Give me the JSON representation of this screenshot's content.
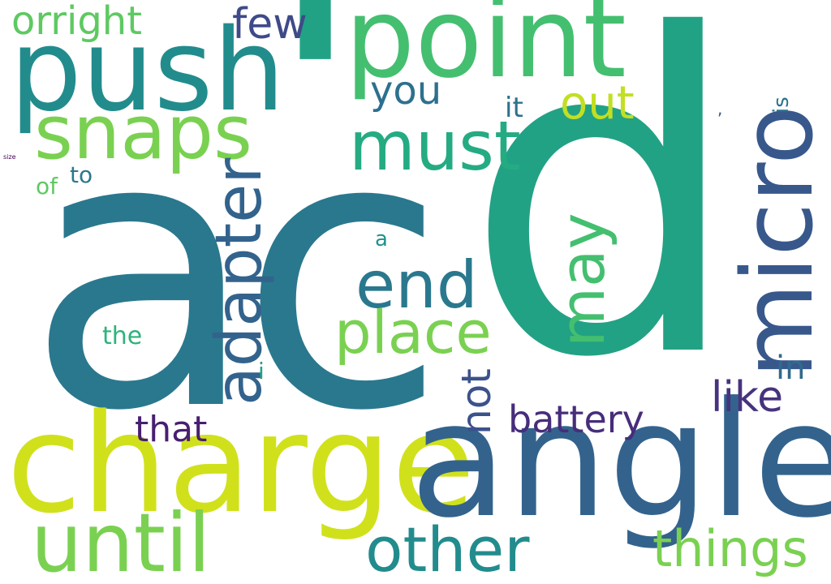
{
  "words": [
    {
      "id": "ac",
      "text": "ac",
      "color": "#2a788e"
    },
    {
      "id": "d",
      "text": "d",
      "color": "#22a284"
    },
    {
      "id": "apostrophe",
      "text": "'",
      "color": "#22a284"
    },
    {
      "id": "charge",
      "text": "charge",
      "color": "#d0e11c"
    },
    {
      "id": "angle",
      "text": "angle",
      "color": "#33638d"
    },
    {
      "id": "point",
      "text": "point",
      "color": "#44bf70"
    },
    {
      "id": "push",
      "text": "push",
      "color": "#228c8d"
    },
    {
      "id": "micro",
      "text": "micro",
      "color": "#38588c"
    },
    {
      "id": "snaps",
      "text": "snaps",
      "color": "#7ad151"
    },
    {
      "id": "adapter",
      "text": "adapter",
      "color": "#33638d"
    },
    {
      "id": "until",
      "text": "until",
      "color": "#7ad151"
    },
    {
      "id": "must",
      "text": "must",
      "color": "#25ab82"
    },
    {
      "id": "end",
      "text": "end",
      "color": "#2a788e"
    },
    {
      "id": "may",
      "text": "may",
      "color": "#44bf70"
    },
    {
      "id": "place",
      "text": "place",
      "color": "#7ad151"
    },
    {
      "id": "other",
      "text": "other",
      "color": "#228c8d"
    },
    {
      "id": "things",
      "text": "things",
      "color": "#7ad151"
    },
    {
      "id": "battery",
      "text": "battery",
      "color": "#472d7b"
    },
    {
      "id": "like",
      "text": "like",
      "color": "#46337e"
    },
    {
      "id": "not",
      "text": "not",
      "color": "#3b528b"
    },
    {
      "id": "orright",
      "text": "orright",
      "color": "#5ec962"
    },
    {
      "id": "few",
      "text": "few",
      "color": "#3e4a89"
    },
    {
      "id": "out",
      "text": "out",
      "color": "#c2df23"
    },
    {
      "id": "you",
      "text": "you",
      "color": "#2d708e"
    },
    {
      "id": "that",
      "text": "that",
      "color": "#481f70"
    },
    {
      "id": "in",
      "text": "in",
      "color": "#306a8e"
    },
    {
      "id": "it",
      "text": "it",
      "color": "#2c728e"
    },
    {
      "id": "the",
      "text": "the",
      "color": "#2eb37c"
    },
    {
      "id": "to",
      "text": "to",
      "color": "#2a788e"
    },
    {
      "id": "of",
      "text": "of",
      "color": "#5ec962"
    },
    {
      "id": "a",
      "text": "a",
      "color": "#21918c"
    },
    {
      "id": "i",
      "text": "i",
      "color": "#20a386"
    },
    {
      "id": "is",
      "text": "is",
      "color": "#2c728e"
    },
    {
      "id": "comma",
      "text": ",",
      "color": "#3b528b"
    },
    {
      "id": "size",
      "text": "size",
      "color": "#440154"
    }
  ]
}
